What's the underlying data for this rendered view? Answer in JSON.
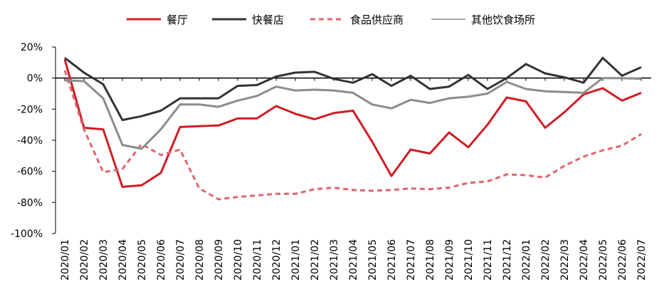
{
  "chart_data": {
    "type": "line",
    "x": [
      "2020/01",
      "2020/02",
      "2020/03",
      "2020/04",
      "2020/05",
      "2020/06",
      "2020/07",
      "2020/08",
      "2020/09",
      "2020/10",
      "2020/11",
      "2020/12",
      "2021/01",
      "2021/02",
      "2021/03",
      "2021/04",
      "2021/05",
      "2021/06",
      "2021/07",
      "2021/08",
      "2021/09",
      "2021/10",
      "2021/11",
      "2021/12",
      "2022/01",
      "2022/02",
      "2022/03",
      "2022/04",
      "2022/05",
      "2022/06",
      "2022/07"
    ],
    "ylim": [
      -100,
      20
    ],
    "yticks": [
      20,
      0,
      -20,
      -40,
      -60,
      -80,
      -100
    ],
    "ytick_labels": [
      "20%",
      "0%",
      "-20%",
      "-40%",
      "-60%",
      "-80%",
      "-100%"
    ],
    "legend_position": "top",
    "series": [
      {
        "name": "餐厅",
        "color": "#d01c24",
        "style": "solid",
        "width": 3,
        "values": [
          12,
          -32,
          -33,
          -70,
          -69,
          -61,
          -31.5,
          -31,
          -30.5,
          -26,
          -26,
          -18,
          -23,
          -26.5,
          -22.5,
          -21,
          -41,
          -63,
          -46,
          -48.5,
          -35,
          -44.5,
          -30,
          -12.5,
          -15,
          -32,
          -22,
          -10.5,
          -6.5,
          -14.5,
          -9.5
        ]
      },
      {
        "name": "快餐店",
        "color": "#333333",
        "style": "solid",
        "width": 3,
        "values": [
          13,
          3.5,
          -4,
          -27,
          -24.5,
          -21,
          -13,
          -13,
          -13,
          -5,
          -4.5,
          1,
          3.5,
          4,
          -0.5,
          -3,
          2.5,
          -5,
          1.5,
          -7,
          -5.5,
          2,
          -7,
          0,
          9,
          3,
          0.5,
          -3,
          13,
          1.5,
          7
        ]
      },
      {
        "name": "食品供应商",
        "color": "#e06470",
        "style": "dashed",
        "width": 3,
        "values": [
          5,
          -33,
          -60.5,
          -58.5,
          -42.5,
          -49.5,
          -46,
          -71,
          -78,
          -76.5,
          -75.5,
          -74.5,
          -74.5,
          -71.5,
          -70.5,
          -72,
          -72.5,
          -72,
          -71,
          -71.5,
          -70.5,
          -67.5,
          -66.5,
          -62,
          -62.5,
          -64,
          -56.5,
          -50.5,
          -46.5,
          -43.5,
          -36
        ]
      },
      {
        "name": "其他饮食场所",
        "color": "#8c8c8c",
        "style": "solid",
        "width": 3,
        "values": [
          -1.5,
          -2,
          -13,
          -43,
          -45.5,
          -33,
          -17,
          -17,
          -18.5,
          -14.5,
          -11.5,
          -5.5,
          -8,
          -7.5,
          -8,
          -9.5,
          -17,
          -19.5,
          -14,
          -16,
          -13,
          -12,
          -10,
          -2.5,
          -7,
          -8.5,
          -9,
          -9.5,
          0,
          0,
          -0.5
        ]
      }
    ]
  }
}
